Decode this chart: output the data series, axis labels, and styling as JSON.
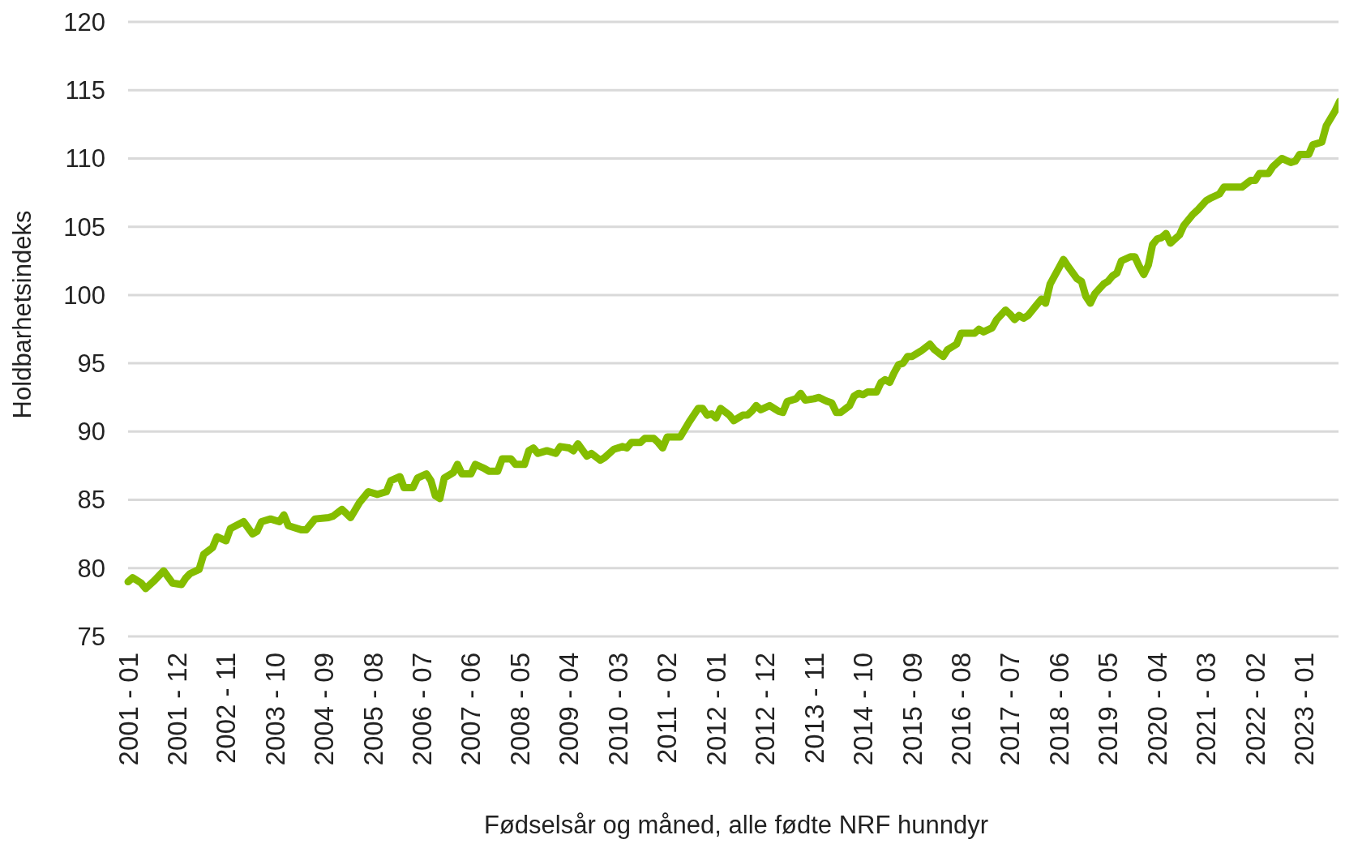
{
  "chart_data": {
    "type": "line",
    "xlabel": "Fødselsår og måned, alle fødte NRF hunndyr",
    "ylabel": "Holdbarhetsindeks",
    "color": "#84bd00",
    "grid": "y",
    "x": [
      "2001-01",
      "2001-02",
      "2001-04",
      "2001-05",
      "2001-07",
      "2001-09",
      "2001-11",
      "2002-01",
      "2002-02",
      "2002-03",
      "2002-05",
      "2002-06",
      "2002-08",
      "2002-09",
      "2002-11",
      "2002-12",
      "2003-03",
      "2003-05",
      "2003-06",
      "2003-07",
      "2003-09",
      "2003-11",
      "2003-12",
      "2004-01",
      "2004-04",
      "2004-05",
      "2004-07",
      "2004-10",
      "2004-11",
      "2005-01",
      "2005-03",
      "2005-05",
      "2005-07",
      "2005-09",
      "2005-11",
      "2005-12",
      "2006-02",
      "2006-03",
      "2006-05",
      "2006-06",
      "2006-08",
      "2006-09",
      "2006-10",
      "2006-11",
      "2006-12",
      "2007-02",
      "2007-03",
      "2007-04",
      "2007-06",
      "2007-07",
      "2007-09",
      "2007-10",
      "2007-12",
      "2008-01",
      "2008-03",
      "2008-04",
      "2008-06",
      "2008-07",
      "2008-08",
      "2008-09",
      "2008-11",
      "2009-01",
      "2009-02",
      "2009-04",
      "2009-05",
      "2009-06",
      "2009-08",
      "2009-09",
      "2009-11",
      "2009-12",
      "2010-02",
      "2010-04",
      "2010-05",
      "2010-06",
      "2010-08",
      "2010-09",
      "2010-11",
      "2010-12",
      "2011-01",
      "2011-02",
      "2011-05",
      "2011-07",
      "2011-09",
      "2011-10",
      "2011-11",
      "2011-12",
      "2012-01",
      "2012-02",
      "2012-04",
      "2012-05",
      "2012-07",
      "2012-08",
      "2012-09",
      "2012-10",
      "2012-11",
      "2013-01",
      "2013-03",
      "2013-04",
      "2013-05",
      "2013-07",
      "2013-08",
      "2013-09",
      "2013-11",
      "2013-12",
      "2014-02",
      "2014-03",
      "2014-04",
      "2014-05",
      "2014-07",
      "2014-08",
      "2014-09",
      "2014-10",
      "2014-11",
      "2015-01",
      "2015-02",
      "2015-03",
      "2015-04",
      "2015-05",
      "2015-06",
      "2015-07",
      "2015-08",
      "2015-09",
      "2015-11",
      "2016-01",
      "2016-02",
      "2016-04",
      "2016-05",
      "2016-07",
      "2016-08",
      "2016-11",
      "2016-12",
      "2017-01",
      "2017-03",
      "2017-04",
      "2017-06",
      "2017-07",
      "2017-08",
      "2017-09",
      "2017-10",
      "2017-11",
      "2018-01",
      "2018-02",
      "2018-03",
      "2018-04",
      "2018-05",
      "2018-06",
      "2018-07",
      "2018-08",
      "2018-10",
      "2018-11",
      "2018-12",
      "2019-01",
      "2019-02",
      "2019-04",
      "2019-05",
      "2019-06",
      "2019-07",
      "2019-08",
      "2019-10",
      "2019-11",
      "2019-12",
      "2020-01",
      "2020-02",
      "2020-03",
      "2020-04",
      "2020-05",
      "2020-06",
      "2020-07",
      "2020-09",
      "2020-10",
      "2020-12",
      "2021-01",
      "2021-03",
      "2021-04",
      "2021-06",
      "2021-07",
      "2021-09",
      "2021-11",
      "2022-01",
      "2022-02",
      "2022-03",
      "2022-05",
      "2022-06",
      "2022-08",
      "2022-10",
      "2022-11",
      "2022-12",
      "2023-02",
      "2023-03",
      "2023-05",
      "2023-06",
      "2023-08",
      "2023-09",
      "2023-10"
    ],
    "values": [
      79.0,
      79.3,
      78.9,
      78.5,
      79.1,
      79.8,
      78.9,
      78.8,
      79.3,
      79.6,
      79.9,
      81.0,
      81.5,
      82.3,
      82.0,
      82.9,
      83.4,
      82.5,
      82.7,
      83.4,
      83.6,
      83.4,
      83.9,
      83.1,
      82.8,
      82.8,
      83.6,
      83.7,
      83.8,
      84.3,
      83.7,
      84.8,
      85.6,
      85.4,
      85.6,
      86.4,
      86.7,
      85.9,
      85.9,
      86.6,
      86.9,
      86.4,
      85.3,
      85.1,
      86.6,
      87.0,
      87.6,
      86.9,
      86.9,
      87.6,
      87.3,
      87.1,
      87.1,
      88.0,
      88.0,
      87.6,
      87.6,
      88.6,
      88.8,
      88.4,
      88.6,
      88.4,
      88.9,
      88.8,
      88.6,
      89.1,
      88.2,
      88.4,
      87.9,
      88.1,
      88.7,
      88.9,
      88.8,
      89.2,
      89.2,
      89.5,
      89.5,
      89.2,
      88.8,
      89.6,
      89.6,
      90.7,
      91.7,
      91.7,
      91.2,
      91.3,
      91.0,
      91.7,
      91.2,
      90.8,
      91.2,
      91.2,
      91.5,
      91.9,
      91.6,
      91.9,
      91.5,
      91.4,
      92.2,
      92.4,
      92.8,
      92.3,
      92.4,
      92.5,
      92.2,
      92.1,
      91.4,
      91.4,
      91.9,
      92.6,
      92.8,
      92.7,
      92.9,
      92.9,
      93.6,
      93.8,
      93.6,
      94.3,
      94.9,
      95.0,
      95.5,
      95.5,
      95.9,
      96.4,
      96.0,
      95.5,
      96.0,
      96.4,
      97.2,
      97.2,
      97.5,
      97.3,
      97.6,
      98.2,
      98.9,
      98.6,
      98.2,
      98.5,
      98.3,
      98.5,
      99.3,
      99.7,
      99.4,
      100.8,
      101.4,
      102.0,
      102.6,
      102.1,
      101.2,
      101.0,
      99.9,
      99.4,
      100.1,
      100.8,
      101.0,
      101.4,
      101.6,
      102.5,
      102.8,
      102.8,
      102.1,
      101.5,
      102.2,
      103.7,
      104.1,
      104.2,
      104.5,
      103.8,
      104.4,
      105.1,
      105.9,
      106.2,
      106.9,
      107.1,
      107.4,
      107.9,
      107.9,
      107.9,
      108.4,
      108.4,
      108.9,
      108.9,
      109.4,
      110.0,
      109.7,
      109.8,
      110.3,
      110.3,
      111.0,
      111.2,
      112.4,
      113.5,
      114.2,
      114.4
    ],
    "xlim": [
      "2001-01",
      "2023-10"
    ],
    "xticks": [
      {
        "value": "2001-01",
        "label": "2001 - 01"
      },
      {
        "value": "2001-12",
        "label": "2001 - 12"
      },
      {
        "value": "2002-11",
        "label": "2002 - 11"
      },
      {
        "value": "2003-10",
        "label": "2003 - 10"
      },
      {
        "value": "2004-09",
        "label": "2004 - 09"
      },
      {
        "value": "2005-08",
        "label": "2005 - 08"
      },
      {
        "value": "2006-07",
        "label": "2006 - 07"
      },
      {
        "value": "2007-06",
        "label": "2007 - 06"
      },
      {
        "value": "2008-05",
        "label": "2008 - 05"
      },
      {
        "value": "2009-04",
        "label": "2009 - 04"
      },
      {
        "value": "2010-03",
        "label": "2010 - 03"
      },
      {
        "value": "2011-02",
        "label": "2011 - 02"
      },
      {
        "value": "2012-01",
        "label": "2012 - 01"
      },
      {
        "value": "2012-12",
        "label": "2012 - 12"
      },
      {
        "value": "2013-11",
        "label": "2013 - 11"
      },
      {
        "value": "2014-10",
        "label": "2014 - 10"
      },
      {
        "value": "2015-09",
        "label": "2015 - 09"
      },
      {
        "value": "2016-08",
        "label": "2016 - 08"
      },
      {
        "value": "2017-07",
        "label": "2017 - 07"
      },
      {
        "value": "2018-06",
        "label": "2018 - 06"
      },
      {
        "value": "2019-05",
        "label": "2019 - 05"
      },
      {
        "value": "2020-04",
        "label": "2020 - 04"
      },
      {
        "value": "2021-03",
        "label": "2021 - 03"
      },
      {
        "value": "2022-02",
        "label": "2022 - 02"
      },
      {
        "value": "2023-01",
        "label": "2023 - 01"
      }
    ],
    "ylim": [
      75,
      120
    ],
    "yticks": [
      75,
      80,
      85,
      90,
      95,
      100,
      105,
      110,
      115,
      120
    ]
  }
}
